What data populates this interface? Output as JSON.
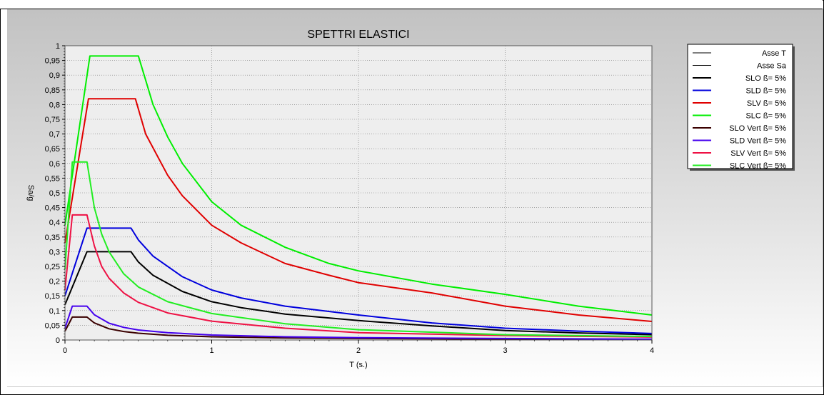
{
  "chart_data": {
    "type": "line",
    "title": "SPETTRI ELASTICI",
    "xlabel": "T (s.)",
    "ylabel": "Sa/g",
    "xlim": [
      0,
      4
    ],
    "ylim": [
      0,
      1
    ],
    "xticks": [
      "0",
      "1",
      "2",
      "3",
      "4"
    ],
    "yticks": [
      "0",
      "0,05",
      "0,1",
      "0,15",
      "0,2",
      "0,25",
      "0,3",
      "0,35",
      "0,4",
      "0,45",
      "0,5",
      "0,55",
      "0,6",
      "0,65",
      "0,7",
      "0,75",
      "0,8",
      "0,85",
      "0,9",
      "0,95",
      "1"
    ],
    "grid": true,
    "legend_position": "right",
    "series": [
      {
        "name": "Asse T",
        "color": "#000000",
        "width": 1,
        "points": []
      },
      {
        "name": "Asse Sa",
        "color": "#000000",
        "width": 1,
        "points": []
      },
      {
        "name": "SLO ß= 5%",
        "color": "#000000",
        "width": 2,
        "points": [
          [
            0,
            0.12
          ],
          [
            0.15,
            0.3
          ],
          [
            0.45,
            0.3
          ],
          [
            0.5,
            0.265
          ],
          [
            0.6,
            0.22
          ],
          [
            0.8,
            0.165
          ],
          [
            1.0,
            0.13
          ],
          [
            1.2,
            0.11
          ],
          [
            1.5,
            0.088
          ],
          [
            2.0,
            0.066
          ],
          [
            2.5,
            0.048
          ],
          [
            3.0,
            0.032
          ],
          [
            3.5,
            0.024
          ],
          [
            4.0,
            0.018
          ]
        ]
      },
      {
        "name": "SLD ß= 5%",
        "color": "#0000dd",
        "width": 2,
        "points": [
          [
            0,
            0.15
          ],
          [
            0.15,
            0.38
          ],
          [
            0.45,
            0.38
          ],
          [
            0.5,
            0.34
          ],
          [
            0.6,
            0.285
          ],
          [
            0.8,
            0.215
          ],
          [
            1.0,
            0.17
          ],
          [
            1.2,
            0.143
          ],
          [
            1.5,
            0.115
          ],
          [
            2.0,
            0.085
          ],
          [
            2.5,
            0.058
          ],
          [
            3.0,
            0.04
          ],
          [
            3.5,
            0.03
          ],
          [
            4.0,
            0.022
          ]
        ]
      },
      {
        "name": "SLV ß= 5%",
        "color": "#e00000",
        "width": 2,
        "points": [
          [
            0,
            0.33
          ],
          [
            0.16,
            0.82
          ],
          [
            0.48,
            0.82
          ],
          [
            0.55,
            0.7
          ],
          [
            0.7,
            0.56
          ],
          [
            0.8,
            0.49
          ],
          [
            1.0,
            0.39
          ],
          [
            1.2,
            0.33
          ],
          [
            1.5,
            0.26
          ],
          [
            1.8,
            0.22
          ],
          [
            2.0,
            0.195
          ],
          [
            2.5,
            0.16
          ],
          [
            3.0,
            0.115
          ],
          [
            3.5,
            0.085
          ],
          [
            4.0,
            0.063
          ]
        ]
      },
      {
        "name": "SLC ß= 5%",
        "color": "#00ee00",
        "width": 2,
        "points": [
          [
            0,
            0.39
          ],
          [
            0.17,
            0.965
          ],
          [
            0.5,
            0.965
          ],
          [
            0.6,
            0.8
          ],
          [
            0.7,
            0.69
          ],
          [
            0.8,
            0.6
          ],
          [
            1.0,
            0.47
          ],
          [
            1.2,
            0.39
          ],
          [
            1.5,
            0.315
          ],
          [
            1.8,
            0.26
          ],
          [
            2.0,
            0.235
          ],
          [
            2.5,
            0.19
          ],
          [
            3.0,
            0.155
          ],
          [
            3.5,
            0.115
          ],
          [
            4.0,
            0.085
          ]
        ]
      },
      {
        "name": "SLO Vert ß= 5%",
        "color": "#3a0000",
        "width": 2,
        "points": [
          [
            0,
            0.03
          ],
          [
            0.05,
            0.078
          ],
          [
            0.15,
            0.078
          ],
          [
            0.2,
            0.058
          ],
          [
            0.3,
            0.038
          ],
          [
            0.4,
            0.029
          ],
          [
            0.5,
            0.023
          ],
          [
            0.7,
            0.016
          ],
          [
            1.0,
            0.011
          ],
          [
            1.5,
            0.007
          ],
          [
            2.0,
            0.005
          ],
          [
            3.0,
            0.003
          ],
          [
            4.0,
            0.002
          ]
        ]
      },
      {
        "name": "SLD Vert ß= 5%",
        "color": "#4400ee",
        "width": 2,
        "points": [
          [
            0,
            0.04
          ],
          [
            0.05,
            0.115
          ],
          [
            0.15,
            0.115
          ],
          [
            0.2,
            0.086
          ],
          [
            0.3,
            0.057
          ],
          [
            0.4,
            0.043
          ],
          [
            0.5,
            0.034
          ],
          [
            0.7,
            0.025
          ],
          [
            1.0,
            0.017
          ],
          [
            1.5,
            0.011
          ],
          [
            2.0,
            0.008
          ],
          [
            3.0,
            0.005
          ],
          [
            4.0,
            0.003
          ]
        ]
      },
      {
        "name": "SLV Vert ß= 5%",
        "color": "#ee1144",
        "width": 2,
        "points": [
          [
            0,
            0.17
          ],
          [
            0.05,
            0.425
          ],
          [
            0.15,
            0.425
          ],
          [
            0.2,
            0.32
          ],
          [
            0.25,
            0.25
          ],
          [
            0.3,
            0.21
          ],
          [
            0.4,
            0.16
          ],
          [
            0.5,
            0.128
          ],
          [
            0.7,
            0.092
          ],
          [
            1.0,
            0.064
          ],
          [
            1.5,
            0.04
          ],
          [
            2.0,
            0.025
          ],
          [
            3.0,
            0.015
          ],
          [
            4.0,
            0.01
          ]
        ]
      },
      {
        "name": "SLC Vert ß= 5%",
        "color": "#22ee22",
        "width": 2,
        "points": [
          [
            0,
            0.24
          ],
          [
            0.05,
            0.605
          ],
          [
            0.15,
            0.605
          ],
          [
            0.2,
            0.45
          ],
          [
            0.25,
            0.36
          ],
          [
            0.3,
            0.3
          ],
          [
            0.4,
            0.225
          ],
          [
            0.5,
            0.18
          ],
          [
            0.7,
            0.13
          ],
          [
            1.0,
            0.09
          ],
          [
            1.5,
            0.055
          ],
          [
            2.0,
            0.035
          ],
          [
            3.0,
            0.018
          ],
          [
            4.0,
            0.012
          ]
        ]
      }
    ]
  }
}
